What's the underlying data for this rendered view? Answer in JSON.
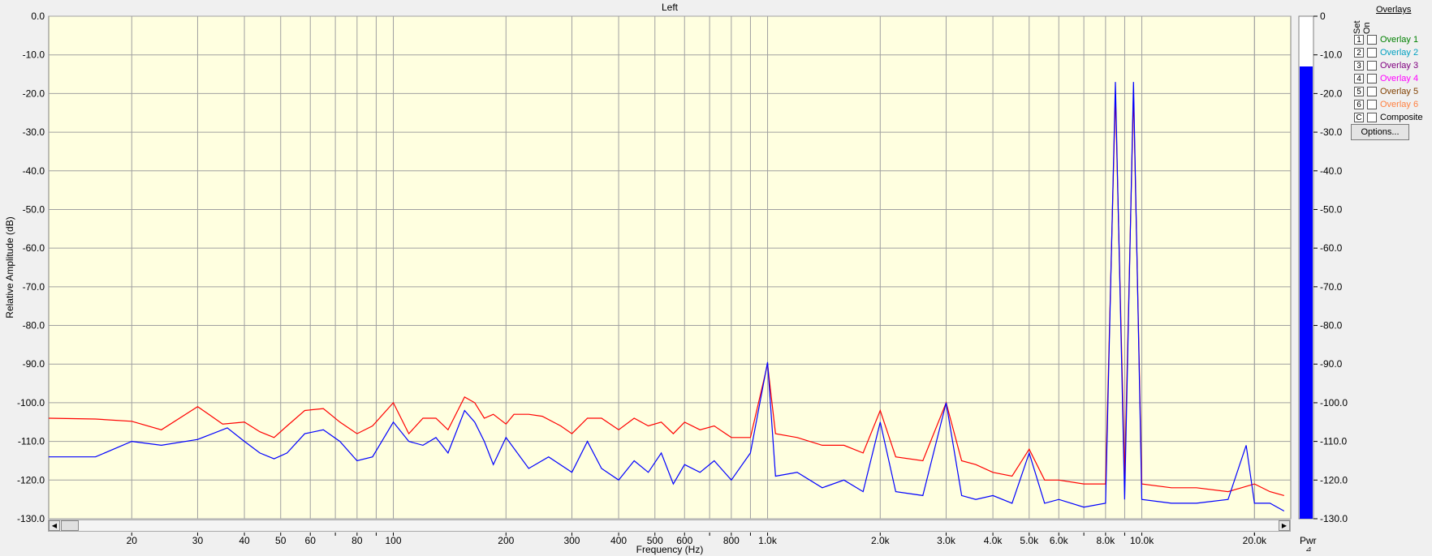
{
  "colors": {
    "plot_bg": "#ffffe0",
    "grid": "#a0a0a0",
    "series_red": "#ff0000",
    "series_blue": "#0000ff",
    "meter_fill": "#0000ff"
  },
  "chart_data": {
    "type": "line",
    "title": "Left",
    "xlabel": "Frequency (Hz)",
    "ylabel": "Relative Amplitude (dB)",
    "x_scale": "log",
    "xlim": [
      12,
      25000
    ],
    "ylim": [
      -130,
      0
    ],
    "y_ticks": [
      "0.0",
      "-10.0",
      "-20.0",
      "-30.0",
      "-40.0",
      "-50.0",
      "-60.0",
      "-70.0",
      "-80.0",
      "-90.0",
      "-100.0",
      "-110.0",
      "-120.0",
      "-130.0"
    ],
    "x_ticks": [
      {
        "v": 20,
        "label": "20"
      },
      {
        "v": 30,
        "label": "30"
      },
      {
        "v": 40,
        "label": "40"
      },
      {
        "v": 50,
        "label": "50"
      },
      {
        "v": 60,
        "label": "60"
      },
      {
        "v": 80,
        "label": "80"
      },
      {
        "v": 100,
        "label": "100"
      },
      {
        "v": 200,
        "label": "200"
      },
      {
        "v": 300,
        "label": "300"
      },
      {
        "v": 400,
        "label": "400"
      },
      {
        "v": 500,
        "label": "500"
      },
      {
        "v": 600,
        "label": "600"
      },
      {
        "v": 800,
        "label": "800"
      },
      {
        "v": 1000,
        "label": "1.0k"
      },
      {
        "v": 2000,
        "label": "2.0k"
      },
      {
        "v": 3000,
        "label": "3.0k"
      },
      {
        "v": 4000,
        "label": "4.0k"
      },
      {
        "v": 5000,
        "label": "5.0k"
      },
      {
        "v": 6000,
        "label": "6.0k"
      },
      {
        "v": 8000,
        "label": "8.0k"
      },
      {
        "v": 10000,
        "label": "10.0k"
      },
      {
        "v": 20000,
        "label": "20.0k"
      }
    ],
    "series": [
      {
        "color": "#ff0000",
        "points": [
          [
            12,
            -104
          ],
          [
            16,
            -104.2
          ],
          [
            20,
            -104.8
          ],
          [
            24,
            -107
          ],
          [
            30,
            -101
          ],
          [
            35,
            -105.5
          ],
          [
            40,
            -105
          ],
          [
            44,
            -107.5
          ],
          [
            48,
            -109
          ],
          [
            52,
            -106
          ],
          [
            58,
            -102
          ],
          [
            65,
            -101.5
          ],
          [
            72,
            -105
          ],
          [
            80,
            -108
          ],
          [
            88,
            -106
          ],
          [
            100,
            -100
          ],
          [
            110,
            -108
          ],
          [
            120,
            -104
          ],
          [
            130,
            -104
          ],
          [
            140,
            -107
          ],
          [
            155,
            -98.5
          ],
          [
            165,
            -100
          ],
          [
            175,
            -104
          ],
          [
            185,
            -103
          ],
          [
            200,
            -105.5
          ],
          [
            210,
            -103
          ],
          [
            230,
            -103
          ],
          [
            250,
            -103.5
          ],
          [
            280,
            -106
          ],
          [
            300,
            -108
          ],
          [
            330,
            -104
          ],
          [
            360,
            -104
          ],
          [
            400,
            -107
          ],
          [
            440,
            -104
          ],
          [
            480,
            -106
          ],
          [
            520,
            -105
          ],
          [
            560,
            -108
          ],
          [
            600,
            -105
          ],
          [
            660,
            -107
          ],
          [
            720,
            -106
          ],
          [
            800,
            -109
          ],
          [
            900,
            -109
          ],
          [
            1000,
            -90
          ],
          [
            1050,
            -108
          ],
          [
            1200,
            -109
          ],
          [
            1400,
            -111
          ],
          [
            1600,
            -111
          ],
          [
            1800,
            -113
          ],
          [
            2000,
            -102
          ],
          [
            2200,
            -114
          ],
          [
            2600,
            -115
          ],
          [
            3000,
            -100
          ],
          [
            3300,
            -115
          ],
          [
            3600,
            -116
          ],
          [
            4000,
            -118
          ],
          [
            4500,
            -119
          ],
          [
            5000,
            -112
          ],
          [
            5500,
            -120
          ],
          [
            6000,
            -120
          ],
          [
            7000,
            -121
          ],
          [
            8000,
            -121
          ],
          [
            8500,
            -20
          ],
          [
            9000,
            -119
          ],
          [
            9500,
            -20
          ],
          [
            10000,
            -121
          ],
          [
            12000,
            -122
          ],
          [
            14000,
            -122
          ],
          [
            17000,
            -123
          ],
          [
            20000,
            -121
          ],
          [
            22000,
            -123
          ],
          [
            24000,
            -124
          ]
        ]
      },
      {
        "color": "#0000ff",
        "points": [
          [
            12,
            -114
          ],
          [
            16,
            -114
          ],
          [
            20,
            -110
          ],
          [
            24,
            -111
          ],
          [
            30,
            -109.5
          ],
          [
            36,
            -106.5
          ],
          [
            40,
            -110
          ],
          [
            44,
            -113
          ],
          [
            48,
            -114.5
          ],
          [
            52,
            -113
          ],
          [
            58,
            -108
          ],
          [
            65,
            -107
          ],
          [
            72,
            -110
          ],
          [
            80,
            -115
          ],
          [
            88,
            -114
          ],
          [
            100,
            -105
          ],
          [
            110,
            -110
          ],
          [
            120,
            -111
          ],
          [
            130,
            -109
          ],
          [
            140,
            -113
          ],
          [
            155,
            -102
          ],
          [
            165,
            -105
          ],
          [
            175,
            -110
          ],
          [
            185,
            -116
          ],
          [
            200,
            -109
          ],
          [
            230,
            -117
          ],
          [
            260,
            -114
          ],
          [
            300,
            -118
          ],
          [
            330,
            -110
          ],
          [
            360,
            -117
          ],
          [
            400,
            -120
          ],
          [
            440,
            -115
          ],
          [
            480,
            -118
          ],
          [
            520,
            -113
          ],
          [
            560,
            -121
          ],
          [
            600,
            -116
          ],
          [
            660,
            -118
          ],
          [
            720,
            -115
          ],
          [
            800,
            -120
          ],
          [
            900,
            -113
          ],
          [
            1000,
            -89.5
          ],
          [
            1050,
            -119
          ],
          [
            1200,
            -118
          ],
          [
            1400,
            -122
          ],
          [
            1600,
            -120
          ],
          [
            1800,
            -123
          ],
          [
            2000,
            -105
          ],
          [
            2200,
            -123
          ],
          [
            2600,
            -124
          ],
          [
            3000,
            -100
          ],
          [
            3300,
            -124
          ],
          [
            3600,
            -125
          ],
          [
            4000,
            -124
          ],
          [
            4500,
            -126
          ],
          [
            5000,
            -113
          ],
          [
            5500,
            -126
          ],
          [
            6000,
            -125
          ],
          [
            7000,
            -127
          ],
          [
            8000,
            -126
          ],
          [
            8500,
            -17
          ],
          [
            9000,
            -125
          ],
          [
            9500,
            -17
          ],
          [
            10000,
            -125
          ],
          [
            12000,
            -126
          ],
          [
            14000,
            -126
          ],
          [
            17000,
            -125
          ],
          [
            19000,
            -111
          ],
          [
            20000,
            -126
          ],
          [
            22000,
            -126
          ],
          [
            24000,
            -128
          ]
        ]
      }
    ],
    "meter": {
      "label": "Pwr",
      "ticks": [
        "0",
        "-10.0",
        "-20.0",
        "-30.0",
        "-40.0",
        "-50.0",
        "-60.0",
        "-70.0",
        "-80.0",
        "-90.0",
        "-100.0",
        "-110.0",
        "-120.0",
        "-130.0"
      ],
      "level_db": -13,
      "floor_db": -130
    }
  },
  "ui": {
    "overlays_title": "Overlays",
    "set_label": "Set",
    "on_label": "On",
    "overlays": [
      {
        "num": "1",
        "label": "Overlay 1",
        "color": "#008000"
      },
      {
        "num": "2",
        "label": "Overlay 2",
        "color": "#00a0c0"
      },
      {
        "num": "3",
        "label": "Overlay 3",
        "color": "#800080"
      },
      {
        "num": "4",
        "label": "Overlay 4",
        "color": "#ff00ff"
      },
      {
        "num": "5",
        "label": "Overlay 5",
        "color": "#804000"
      },
      {
        "num": "6",
        "label": "Overlay 6",
        "color": "#ff8040"
      },
      {
        "num": "C",
        "label": "Composite",
        "color": "#000000"
      }
    ],
    "options_label": "Options...",
    "scroll_left": "◀",
    "scroll_right": "▶",
    "corner_glyph": "⊿"
  }
}
